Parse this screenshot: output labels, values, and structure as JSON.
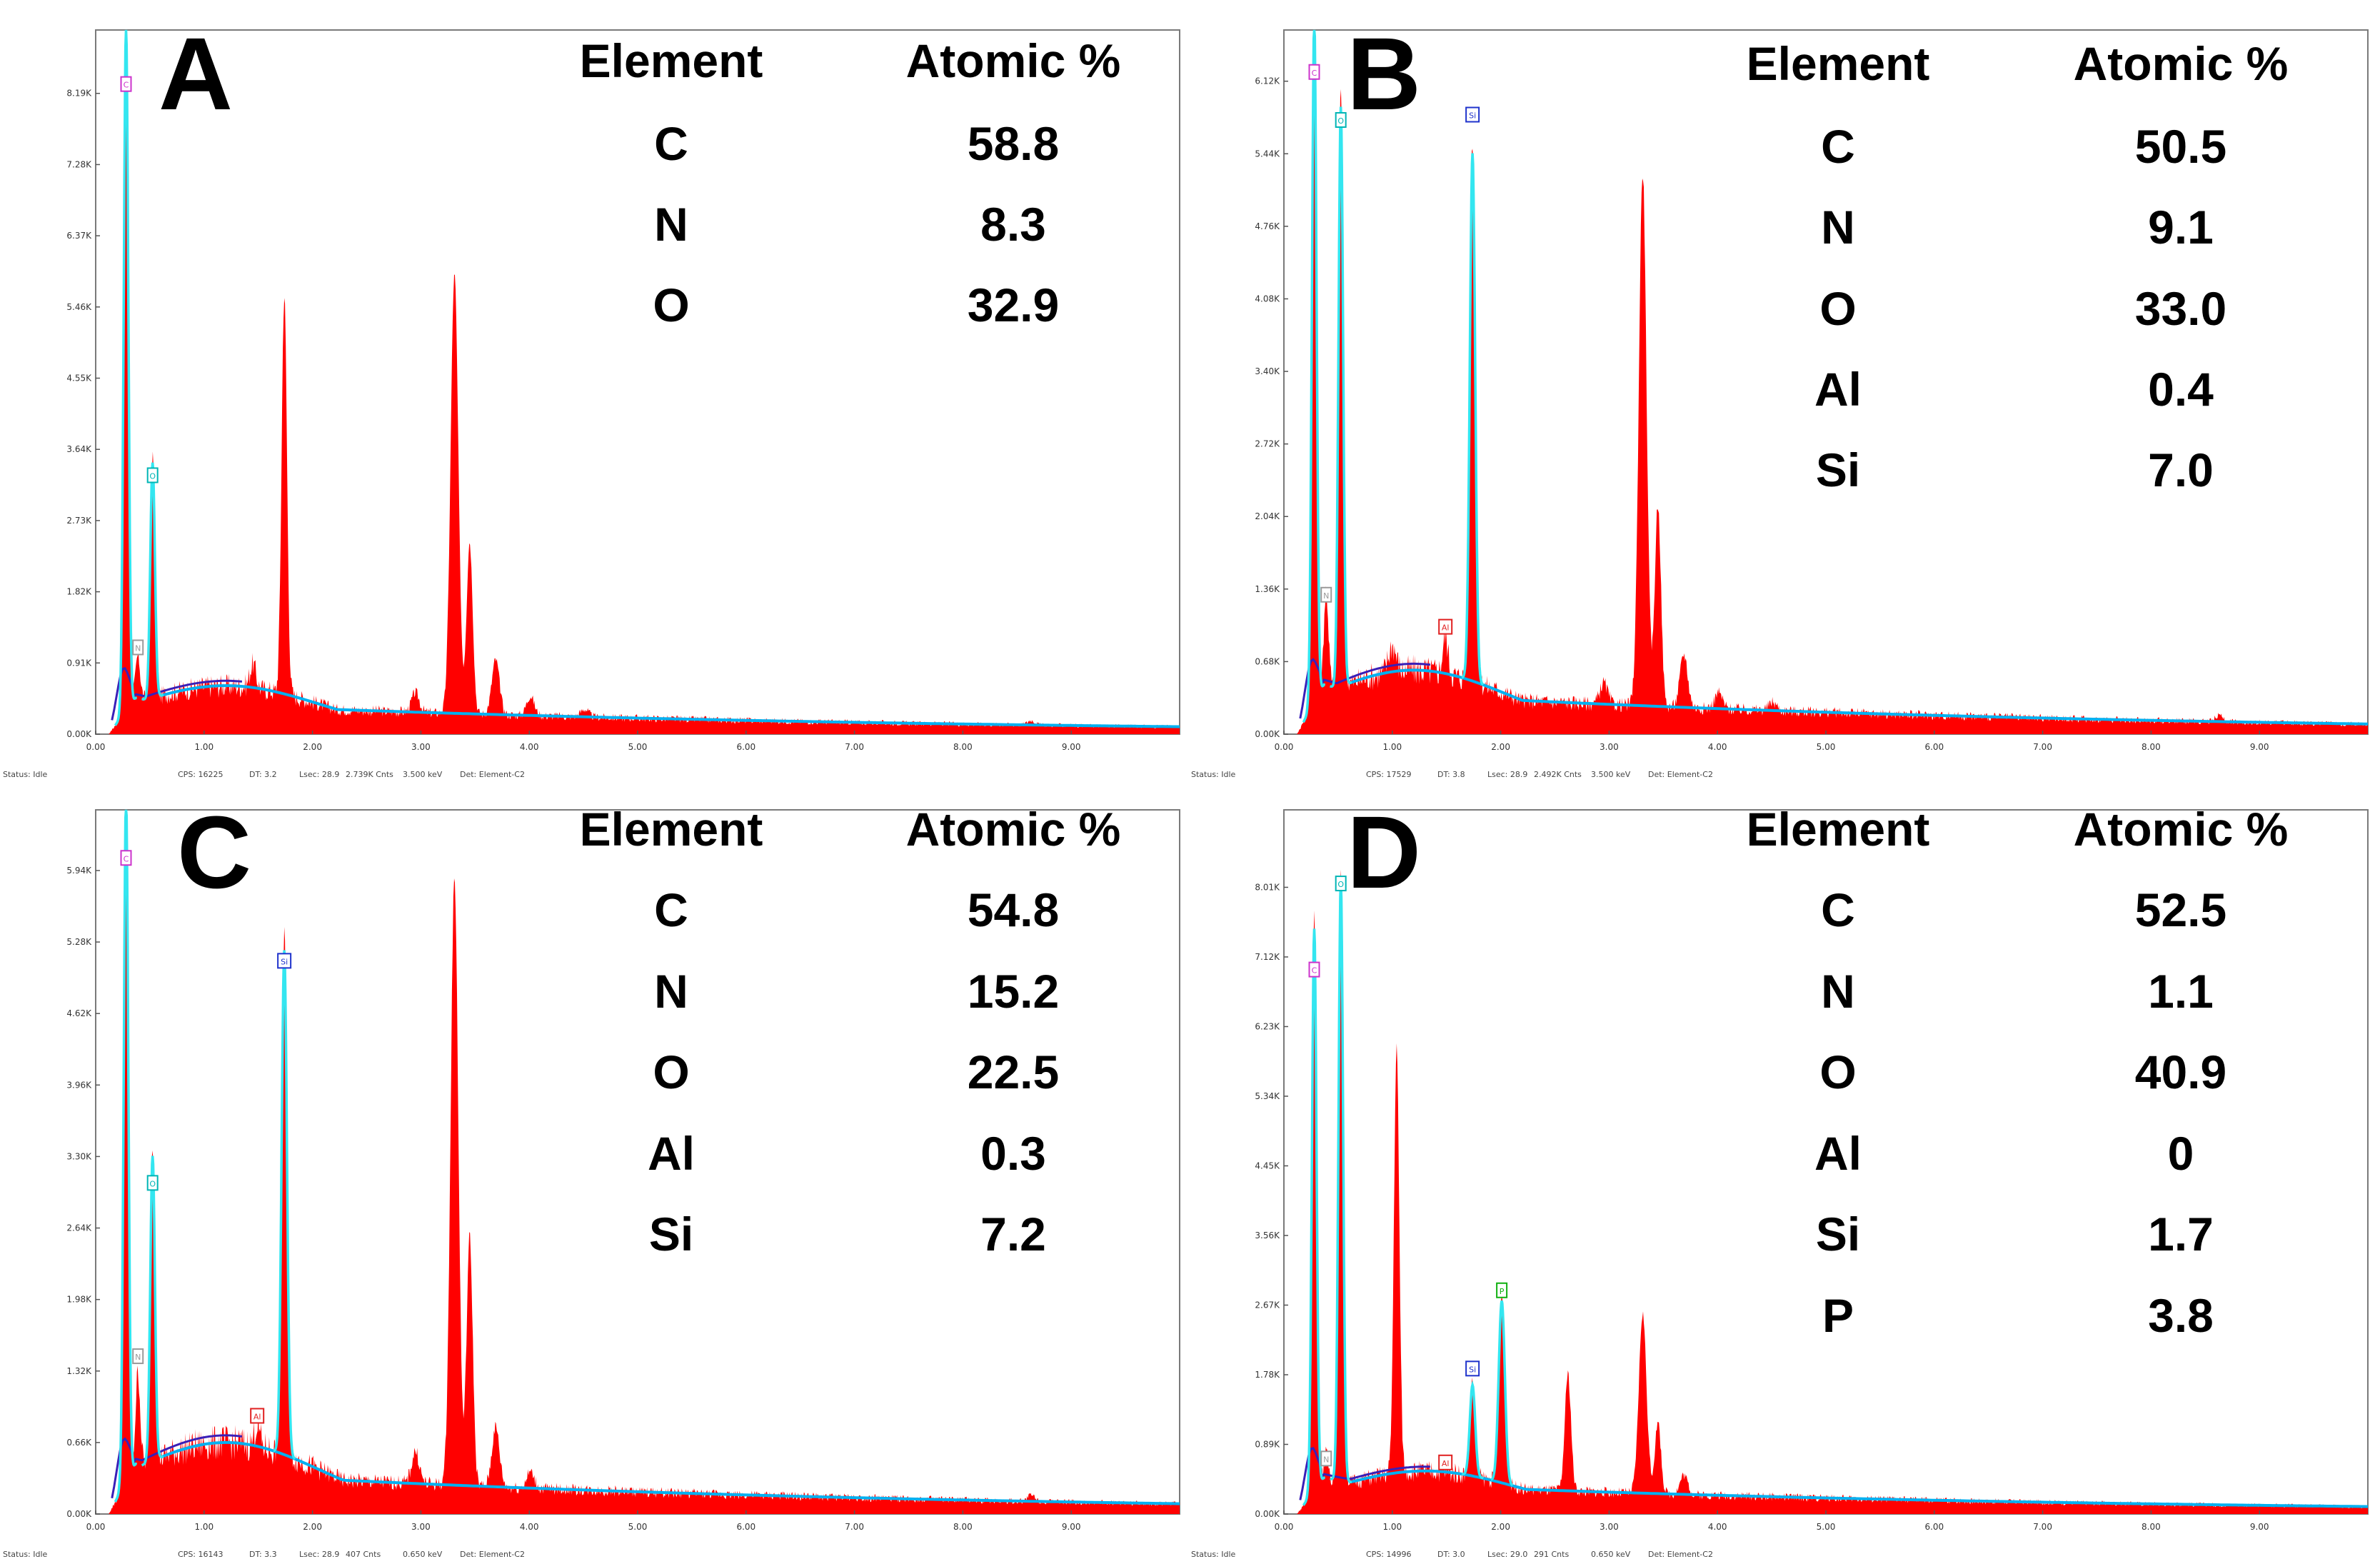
{
  "figure": "EDS spectra with elemental composition",
  "colors": {
    "spectrum_fill": "#ff0000",
    "background_fit": "#00b0f0",
    "cyan_overlay": "#33e6f0",
    "purple_overlay": "#3a1fb8",
    "marker_C": "#cc33cc",
    "marker_O": "#00b5b5",
    "marker_N": "#9a9a9a",
    "marker_Si": "#1f33cc",
    "marker_Al": "#e02020",
    "marker_P": "#10b010"
  },
  "panels": [
    {
      "id": "A",
      "table": {
        "header_element": "Element",
        "header_atomic": "Atomic %",
        "rows": [
          {
            "element": "C",
            "value": "58.8"
          },
          {
            "element": "N",
            "value": "8.3"
          },
          {
            "element": "O",
            "value": "32.9"
          }
        ]
      },
      "status": {
        "status": "Status: Idle",
        "cps": "CPS: 16225",
        "dt": "DT: 3.2",
        "lsec": "Lsec: 28.9",
        "cnts": "2.739K Cnts",
        "kev": "3.500 keV",
        "det": "Det: Element-C2"
      }
    },
    {
      "id": "B",
      "table": {
        "header_element": "Element",
        "header_atomic": "Atomic %",
        "rows": [
          {
            "element": "C",
            "value": "50.5"
          },
          {
            "element": "N",
            "value": "9.1"
          },
          {
            "element": "O",
            "value": "33.0"
          },
          {
            "element": "Al",
            "value": "0.4"
          },
          {
            "element": "Si",
            "value": "7.0"
          }
        ]
      },
      "status": {
        "status": "Status: Idle",
        "cps": "CPS: 17529",
        "dt": "DT: 3.8",
        "lsec": "Lsec: 28.9",
        "cnts": "2.492K Cnts",
        "kev": "3.500 keV",
        "det": "Det: Element-C2"
      }
    },
    {
      "id": "C",
      "table": {
        "header_element": "Element",
        "header_atomic": "Atomic %",
        "rows": [
          {
            "element": "C",
            "value": "54.8"
          },
          {
            "element": "N",
            "value": "15.2"
          },
          {
            "element": "O",
            "value": "22.5"
          },
          {
            "element": "Al",
            "value": "0.3"
          },
          {
            "element": "Si",
            "value": "7.2"
          }
        ]
      },
      "status": {
        "status": "Status: Idle",
        "cps": "CPS: 16143",
        "dt": "DT: 3.3",
        "lsec": "Lsec: 28.9",
        "cnts": "407 Cnts",
        "kev": "0.650 keV",
        "det": "Det: Element-C2"
      }
    },
    {
      "id": "D",
      "table": {
        "header_element": "Element",
        "header_atomic": "Atomic %",
        "rows": [
          {
            "element": "C",
            "value": "52.5"
          },
          {
            "element": "N",
            "value": "1.1"
          },
          {
            "element": "O",
            "value": "40.9"
          },
          {
            "element": "Al",
            "value": "0"
          },
          {
            "element": "Si",
            "value": "1.7"
          },
          {
            "element": "P",
            "value": "3.8"
          }
        ]
      },
      "status": {
        "status": "Status: Idle",
        "cps": "CPS: 14996",
        "dt": "DT: 3.0",
        "lsec": "Lsec: 29.0",
        "cnts": "291 Cnts",
        "kev": "0.650 keV",
        "det": "Det: Element-C2"
      }
    }
  ],
  "chart_data": [
    {
      "type": "area",
      "panel": "A",
      "xlabel": "",
      "ylabel": "",
      "title": "",
      "xlim": [
        0,
        10
      ],
      "ylim": [
        0,
        9.0
      ],
      "x_ticks": [
        "0.00",
        "1.00",
        "2.00",
        "3.00",
        "4.00",
        "5.00",
        "6.00",
        "7.00",
        "8.00",
        "9.00"
      ],
      "y_ticks": [
        "0.00K",
        "0.91K",
        "1.82K",
        "2.73K",
        "3.64K",
        "4.55K",
        "5.46K",
        "6.37K",
        "7.28K",
        "8.19K"
      ],
      "y_tick_values": [
        0,
        0.91,
        1.82,
        2.73,
        3.64,
        4.55,
        5.46,
        6.37,
        7.28,
        8.19
      ],
      "peaks": [
        {
          "kev": 0.28,
          "counts": 9.0,
          "width": 0.03
        },
        {
          "kev": 0.39,
          "counts": 0.55,
          "width": 0.03
        },
        {
          "kev": 0.525,
          "counts": 3.1,
          "width": 0.03
        },
        {
          "kev": 1.45,
          "counts": 0.3,
          "width": 0.04
        },
        {
          "kev": 1.74,
          "counts": 5.1,
          "width": 0.035
        },
        {
          "kev": 2.95,
          "counts": 0.25,
          "width": 0.05
        },
        {
          "kev": 3.31,
          "counts": 5.6,
          "width": 0.05
        },
        {
          "kev": 3.45,
          "counts": 2.2,
          "width": 0.04
        },
        {
          "kev": 3.69,
          "counts": 0.7,
          "width": 0.05
        },
        {
          "kev": 4.01,
          "counts": 0.25,
          "width": 0.05
        },
        {
          "kev": 4.51,
          "counts": 0.1,
          "width": 0.05
        },
        {
          "kev": 8.63,
          "counts": 0.06,
          "width": 0.05
        }
      ],
      "continuum_peak": {
        "kev": 1.2,
        "counts": 0.62
      },
      "element_markers": [
        {
          "label": "C",
          "kev": 0.28,
          "counts": 8.3,
          "color": "#cc33cc"
        },
        {
          "label": "O",
          "kev": 0.525,
          "counts": 3.3,
          "color": "#00b5b5"
        },
        {
          "label": "N",
          "kev": 0.39,
          "counts": 1.1,
          "color": "#9a9a9a"
        }
      ]
    },
    {
      "type": "area",
      "panel": "B",
      "xlabel": "",
      "ylabel": "",
      "title": "",
      "xlim": [
        0,
        10
      ],
      "ylim": [
        0,
        6.6
      ],
      "x_ticks": [
        "0.00",
        "1.00",
        "2.00",
        "3.00",
        "4.00",
        "5.00",
        "6.00",
        "7.00",
        "8.00",
        "9.00"
      ],
      "y_ticks": [
        "0.00K",
        "0.68K",
        "1.36K",
        "2.04K",
        "2.72K",
        "3.40K",
        "4.08K",
        "4.76K",
        "5.44K",
        "6.12K"
      ],
      "y_tick_values": [
        0,
        0.68,
        1.36,
        2.04,
        2.72,
        3.4,
        4.08,
        4.76,
        5.44,
        6.12
      ],
      "peaks": [
        {
          "kev": 0.28,
          "counts": 6.6,
          "width": 0.03
        },
        {
          "kev": 0.39,
          "counts": 0.9,
          "width": 0.03
        },
        {
          "kev": 0.525,
          "counts": 5.6,
          "width": 0.03
        },
        {
          "kev": 1.0,
          "counts": 0.25,
          "width": 0.05
        },
        {
          "kev": 1.49,
          "counts": 0.35,
          "width": 0.035
        },
        {
          "kev": 1.74,
          "counts": 5.1,
          "width": 0.035
        },
        {
          "kev": 2.95,
          "counts": 0.2,
          "width": 0.05
        },
        {
          "kev": 3.31,
          "counts": 5.0,
          "width": 0.05
        },
        {
          "kev": 3.45,
          "counts": 1.9,
          "width": 0.04
        },
        {
          "kev": 3.69,
          "counts": 0.5,
          "width": 0.05
        },
        {
          "kev": 4.01,
          "counts": 0.15,
          "width": 0.05
        },
        {
          "kev": 4.51,
          "counts": 0.08,
          "width": 0.05
        },
        {
          "kev": 8.63,
          "counts": 0.06,
          "width": 0.05
        }
      ],
      "continuum_peak": {
        "kev": 1.2,
        "counts": 0.6
      },
      "element_markers": [
        {
          "label": "C",
          "kev": 0.28,
          "counts": 6.2,
          "color": "#cc33cc"
        },
        {
          "label": "O",
          "kev": 0.525,
          "counts": 5.75,
          "color": "#00b5b5"
        },
        {
          "label": "Si",
          "kev": 1.74,
          "counts": 5.8,
          "color": "#1f33cc"
        },
        {
          "label": "N",
          "kev": 0.39,
          "counts": 1.3,
          "color": "#9a9a9a"
        },
        {
          "label": "Al",
          "kev": 1.49,
          "counts": 1.0,
          "color": "#e02020"
        }
      ]
    },
    {
      "type": "area",
      "panel": "C",
      "xlabel": "",
      "ylabel": "",
      "title": "",
      "xlim": [
        0,
        10
      ],
      "ylim": [
        0,
        6.5
      ],
      "x_ticks": [
        "0.00",
        "1.00",
        "2.00",
        "3.00",
        "4.00",
        "5.00",
        "6.00",
        "7.00",
        "8.00",
        "9.00"
      ],
      "y_ticks": [
        "0.00K",
        "0.66K",
        "1.32K",
        "1.98K",
        "2.64K",
        "3.30K",
        "3.96K",
        "4.62K",
        "5.28K",
        "5.94K"
      ],
      "y_tick_values": [
        0,
        0.66,
        1.32,
        1.98,
        2.64,
        3.3,
        3.96,
        4.62,
        5.28,
        5.94
      ],
      "peaks": [
        {
          "kev": 0.28,
          "counts": 6.5,
          "width": 0.03
        },
        {
          "kev": 0.39,
          "counts": 0.85,
          "width": 0.03
        },
        {
          "kev": 0.525,
          "counts": 2.9,
          "width": 0.03
        },
        {
          "kev": 1.49,
          "counts": 0.2,
          "width": 0.035
        },
        {
          "kev": 1.74,
          "counts": 4.8,
          "width": 0.035
        },
        {
          "kev": 2.95,
          "counts": 0.3,
          "width": 0.05
        },
        {
          "kev": 3.31,
          "counts": 5.6,
          "width": 0.05
        },
        {
          "kev": 3.45,
          "counts": 2.3,
          "width": 0.04
        },
        {
          "kev": 3.69,
          "counts": 0.55,
          "width": 0.05
        },
        {
          "kev": 4.01,
          "counts": 0.15,
          "width": 0.05
        },
        {
          "kev": 8.63,
          "counts": 0.06,
          "width": 0.05
        }
      ],
      "continuum_peak": {
        "kev": 1.2,
        "counts": 0.66
      },
      "element_markers": [
        {
          "label": "C",
          "kev": 0.28,
          "counts": 6.05,
          "color": "#cc33cc"
        },
        {
          "label": "Si",
          "kev": 1.74,
          "counts": 5.1,
          "color": "#1f33cc"
        },
        {
          "label": "O",
          "kev": 0.525,
          "counts": 3.05,
          "color": "#00b5b5"
        },
        {
          "label": "N",
          "kev": 0.39,
          "counts": 1.45,
          "color": "#9a9a9a"
        },
        {
          "label": "Al",
          "kev": 1.49,
          "counts": 0.9,
          "color": "#e02020"
        }
      ]
    },
    {
      "type": "area",
      "panel": "D",
      "xlabel": "",
      "ylabel": "",
      "title": "",
      "xlim": [
        0,
        10
      ],
      "ylim": [
        0,
        9.0
      ],
      "x_ticks": [
        "0.00",
        "1.00",
        "2.00",
        "3.00",
        "4.00",
        "5.00",
        "6.00",
        "7.00",
        "8.00",
        "9.00"
      ],
      "y_ticks": [
        "0.00K",
        "0.89K",
        "1.78K",
        "2.67K",
        "3.56K",
        "4.45K",
        "5.34K",
        "6.23K",
        "7.12K",
        "8.01K"
      ],
      "y_tick_values": [
        0,
        0.89,
        1.78,
        2.67,
        3.56,
        4.45,
        5.34,
        6.23,
        7.12,
        8.01
      ],
      "peaks": [
        {
          "kev": 0.28,
          "counts": 7.4,
          "width": 0.03
        },
        {
          "kev": 0.39,
          "counts": 0.3,
          "width": 0.03
        },
        {
          "kev": 0.525,
          "counts": 7.9,
          "width": 0.03
        },
        {
          "kev": 1.04,
          "counts": 5.4,
          "width": 0.035
        },
        {
          "kev": 1.74,
          "counts": 1.2,
          "width": 0.035
        },
        {
          "kev": 2.01,
          "counts": 2.4,
          "width": 0.04
        },
        {
          "kev": 2.62,
          "counts": 1.5,
          "width": 0.04
        },
        {
          "kev": 3.31,
          "counts": 2.3,
          "width": 0.05
        },
        {
          "kev": 3.45,
          "counts": 0.9,
          "width": 0.04
        },
        {
          "kev": 3.69,
          "counts": 0.25,
          "width": 0.05
        }
      ],
      "continuum_peak": {
        "kev": 1.3,
        "counts": 0.55
      },
      "element_markers": [
        {
          "label": "O",
          "kev": 0.525,
          "counts": 8.05,
          "color": "#00b5b5"
        },
        {
          "label": "C",
          "kev": 0.28,
          "counts": 6.95,
          "color": "#cc33cc"
        },
        {
          "label": "P",
          "kev": 2.01,
          "counts": 2.85,
          "color": "#10b010"
        },
        {
          "label": "Si",
          "kev": 1.74,
          "counts": 1.85,
          "color": "#1f33cc"
        },
        {
          "label": "Al",
          "kev": 1.49,
          "counts": 0.65,
          "color": "#e02020"
        },
        {
          "label": "N",
          "kev": 0.39,
          "counts": 0.7,
          "color": "#9a9a9a"
        }
      ]
    }
  ]
}
